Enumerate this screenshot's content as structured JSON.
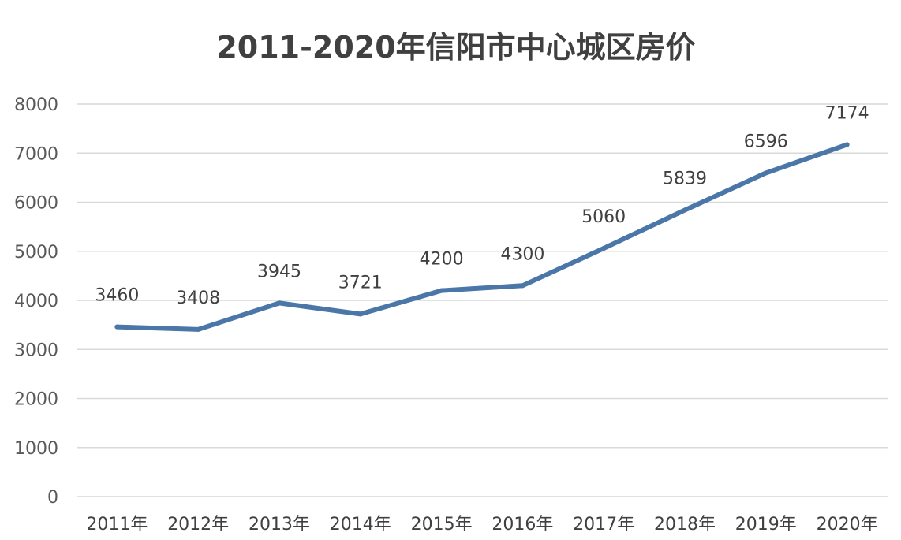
{
  "chart_data": {
    "type": "line",
    "title": "2011-2020年信阳市中心城区房价",
    "xlabel": "",
    "ylabel": "",
    "categories": [
      "2011年",
      "2012年",
      "2013年",
      "2014年",
      "2015年",
      "2016年",
      "2017年",
      "2018年",
      "2019年",
      "2020年"
    ],
    "series": [
      {
        "values": [
          3460,
          3408,
          3945,
          3721,
          4200,
          4300,
          5060,
          5839,
          6596,
          7174
        ],
        "color": "#4a76a8"
      }
    ],
    "ylim": [
      0,
      8000
    ],
    "yticks": [
      0,
      1000,
      2000,
      3000,
      4000,
      5000,
      6000,
      7000,
      8000
    ],
    "grid": true,
    "legend": "none",
    "data_labels": true
  }
}
